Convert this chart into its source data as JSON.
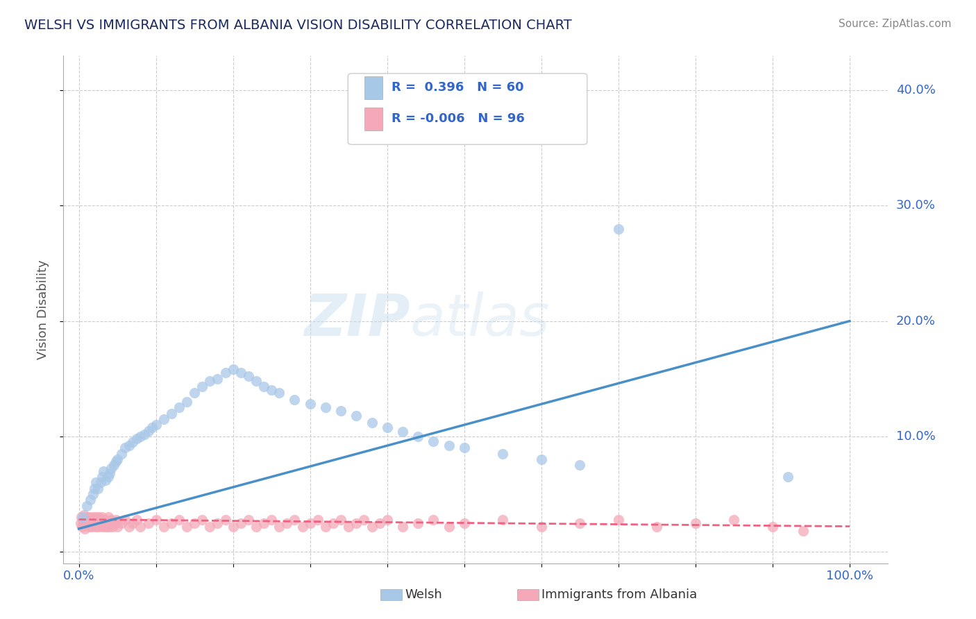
{
  "title": "WELSH VS IMMIGRANTS FROM ALBANIA VISION DISABILITY CORRELATION CHART",
  "source": "Source: ZipAtlas.com",
  "ylabel": "Vision Disability",
  "xlim": [
    -0.02,
    1.05
  ],
  "ylim": [
    -0.01,
    0.43
  ],
  "x_ticks": [
    0.0,
    0.1,
    0.2,
    0.3,
    0.4,
    0.5,
    0.6,
    0.7,
    0.8,
    0.9,
    1.0
  ],
  "x_tick_labels": [
    "0.0%",
    "",
    "",
    "",
    "",
    "",
    "",
    "",
    "",
    "",
    "100.0%"
  ],
  "y_ticks": [
    0.0,
    0.1,
    0.2,
    0.3,
    0.4
  ],
  "y_tick_labels": [
    "",
    "10.0%",
    "20.0%",
    "30.0%",
    "40.0%"
  ],
  "legend_welsh": "Welsh",
  "legend_albania": "Immigrants from Albania",
  "R_welsh": 0.396,
  "N_welsh": 60,
  "R_albania": -0.006,
  "N_albania": 96,
  "welsh_color": "#a8c8e8",
  "albania_color": "#f4a8b8",
  "welsh_line_color": "#4a90c8",
  "albania_line_color": "#f06080",
  "background_color": "#ffffff",
  "welsh_line_x0": 0.0,
  "welsh_line_y0": 0.02,
  "welsh_line_x1": 1.0,
  "welsh_line_y1": 0.2,
  "albania_line_x0": 0.0,
  "albania_line_y0": 0.028,
  "albania_line_x1": 1.0,
  "albania_line_y1": 0.022,
  "welsh_x": [
    0.005,
    0.01,
    0.015,
    0.018,
    0.02,
    0.022,
    0.025,
    0.028,
    0.03,
    0.032,
    0.035,
    0.038,
    0.04,
    0.042,
    0.045,
    0.048,
    0.05,
    0.055,
    0.06,
    0.065,
    0.07,
    0.075,
    0.08,
    0.085,
    0.09,
    0.095,
    0.1,
    0.11,
    0.12,
    0.13,
    0.14,
    0.15,
    0.16,
    0.17,
    0.18,
    0.19,
    0.2,
    0.21,
    0.22,
    0.23,
    0.24,
    0.25,
    0.26,
    0.28,
    0.3,
    0.32,
    0.34,
    0.36,
    0.38,
    0.4,
    0.42,
    0.44,
    0.46,
    0.48,
    0.5,
    0.55,
    0.6,
    0.65,
    0.7,
    0.92
  ],
  "welsh_y": [
    0.03,
    0.04,
    0.045,
    0.05,
    0.055,
    0.06,
    0.055,
    0.06,
    0.065,
    0.07,
    0.062,
    0.065,
    0.068,
    0.072,
    0.075,
    0.078,
    0.08,
    0.085,
    0.09,
    0.092,
    0.095,
    0.098,
    0.1,
    0.102,
    0.105,
    0.108,
    0.11,
    0.115,
    0.12,
    0.125,
    0.13,
    0.138,
    0.143,
    0.148,
    0.15,
    0.155,
    0.158,
    0.155,
    0.152,
    0.148,
    0.143,
    0.14,
    0.138,
    0.132,
    0.128,
    0.125,
    0.122,
    0.118,
    0.112,
    0.108,
    0.104,
    0.1,
    0.096,
    0.092,
    0.09,
    0.085,
    0.08,
    0.075,
    0.28,
    0.065
  ],
  "albania_x": [
    0.002,
    0.003,
    0.004,
    0.005,
    0.006,
    0.007,
    0.008,
    0.009,
    0.01,
    0.011,
    0.012,
    0.013,
    0.014,
    0.015,
    0.016,
    0.017,
    0.018,
    0.019,
    0.02,
    0.021,
    0.022,
    0.023,
    0.024,
    0.025,
    0.026,
    0.027,
    0.028,
    0.029,
    0.03,
    0.031,
    0.032,
    0.033,
    0.034,
    0.035,
    0.036,
    0.037,
    0.038,
    0.039,
    0.04,
    0.042,
    0.044,
    0.046,
    0.048,
    0.05,
    0.055,
    0.06,
    0.065,
    0.07,
    0.075,
    0.08,
    0.09,
    0.1,
    0.11,
    0.12,
    0.13,
    0.14,
    0.15,
    0.16,
    0.17,
    0.18,
    0.19,
    0.2,
    0.21,
    0.22,
    0.23,
    0.24,
    0.25,
    0.26,
    0.27,
    0.28,
    0.29,
    0.3,
    0.31,
    0.32,
    0.33,
    0.34,
    0.35,
    0.36,
    0.37,
    0.38,
    0.39,
    0.4,
    0.42,
    0.44,
    0.46,
    0.48,
    0.5,
    0.55,
    0.6,
    0.65,
    0.7,
    0.75,
    0.8,
    0.85,
    0.9,
    0.94
  ],
  "albania_y": [
    0.025,
    0.03,
    0.022,
    0.028,
    0.025,
    0.032,
    0.02,
    0.026,
    0.03,
    0.024,
    0.028,
    0.022,
    0.03,
    0.025,
    0.028,
    0.022,
    0.03,
    0.025,
    0.028,
    0.022,
    0.03,
    0.025,
    0.028,
    0.022,
    0.03,
    0.025,
    0.028,
    0.022,
    0.03,
    0.025,
    0.028,
    0.022,
    0.025,
    0.028,
    0.022,
    0.025,
    0.03,
    0.022,
    0.025,
    0.028,
    0.022,
    0.025,
    0.028,
    0.022,
    0.025,
    0.028,
    0.022,
    0.025,
    0.028,
    0.022,
    0.025,
    0.028,
    0.022,
    0.025,
    0.028,
    0.022,
    0.025,
    0.028,
    0.022,
    0.025,
    0.028,
    0.022,
    0.025,
    0.028,
    0.022,
    0.025,
    0.028,
    0.022,
    0.025,
    0.028,
    0.022,
    0.025,
    0.028,
    0.022,
    0.025,
    0.028,
    0.022,
    0.025,
    0.028,
    0.022,
    0.025,
    0.028,
    0.022,
    0.025,
    0.028,
    0.022,
    0.025,
    0.028,
    0.022,
    0.025,
    0.028,
    0.022,
    0.025,
    0.028,
    0.022,
    0.018
  ]
}
